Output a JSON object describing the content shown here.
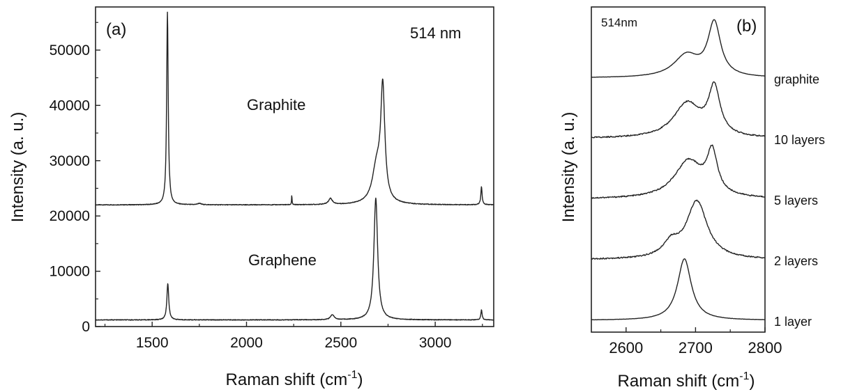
{
  "chart_data": [
    {
      "panel_label": "(a)",
      "type": "line",
      "annotation": "514 nm",
      "xlabel": "Raman shift (cm",
      "xlabel_sup": "-1",
      "xlabel_end": ")",
      "ylabel": "Intensity (a. u.)",
      "xlim": [
        1200,
        3310
      ],
      "ylim": [
        0,
        57800
      ],
      "x_ticks": [
        1500,
        2000,
        2500,
        3000
      ],
      "y_ticks": [
        0,
        10000,
        20000,
        30000,
        40000,
        50000
      ],
      "x_tick_labels": [
        "1500",
        "2000",
        "2500",
        "3000"
      ],
      "y_tick_labels": [
        "0",
        "10000",
        "20000",
        "30000",
        "40000",
        "50000"
      ],
      "series": [
        {
          "name": "Graphite",
          "baseline": 22000,
          "slope": 0.25,
          "peaks": [
            {
              "x": 1581,
              "height": 34800,
              "width": 5
            },
            {
              "x": 1750,
              "height": 250,
              "width": 12
            },
            {
              "x": 2240,
              "height": 1800,
              "width": 1.5
            },
            {
              "x": 2445,
              "height": 1100,
              "width": 12
            },
            {
              "x": 2690,
              "height": 6500,
              "width": 28
            },
            {
              "x": 2722,
              "height": 20000,
              "width": 13
            },
            {
              "x": 3245,
              "height": 3300,
              "width": 4
            }
          ]
        },
        {
          "name": "Graphene",
          "baseline": 1200,
          "slope": 0.2,
          "peaks": [
            {
              "x": 1583,
              "height": 6600,
              "width": 6
            },
            {
              "x": 2455,
              "height": 900,
              "width": 12
            },
            {
              "x": 2685,
              "height": 22000,
              "width": 12
            },
            {
              "x": 3245,
              "height": 1800,
              "width": 4
            }
          ]
        }
      ]
    },
    {
      "panel_label": "(b)",
      "type": "line",
      "annotation": "514nm",
      "xlabel": "Raman shift (cm",
      "xlabel_sup": "-1",
      "xlabel_end": ")",
      "ylabel": "Intensity (a. u.)",
      "xlim": [
        2550,
        2800
      ],
      "x_ticks": [
        2600,
        2700,
        2800
      ],
      "x_tick_labels": [
        "2600",
        "2700",
        "2800"
      ],
      "y_ticks": [],
      "series": [
        {
          "name": "graphite",
          "offset": 4.0,
          "peaks": [
            {
              "x": 2687,
              "height": 0.35,
              "width": 22
            },
            {
              "x": 2727,
              "height": 0.85,
              "width": 11
            }
          ]
        },
        {
          "name": "10 layers",
          "offset": 3.0,
          "peaks": [
            {
              "x": 2688,
              "height": 0.55,
              "width": 24
            },
            {
              "x": 2727,
              "height": 0.75,
              "width": 10
            }
          ]
        },
        {
          "name": "5 layers",
          "offset": 2.0,
          "peaks": [
            {
              "x": 2690,
              "height": 0.6,
              "width": 25
            },
            {
              "x": 2724,
              "height": 0.65,
              "width": 9
            }
          ]
        },
        {
          "name": "2 layers",
          "offset": 1.0,
          "peaks": [
            {
              "x": 2665,
              "height": 0.22,
              "width": 14
            },
            {
              "x": 2702,
              "height": 0.92,
              "width": 18
            }
          ]
        },
        {
          "name": "1 layer",
          "offset": 0.0,
          "peaks": [
            {
              "x": 2684,
              "height": 0.98,
              "width": 12
            }
          ]
        }
      ]
    }
  ]
}
